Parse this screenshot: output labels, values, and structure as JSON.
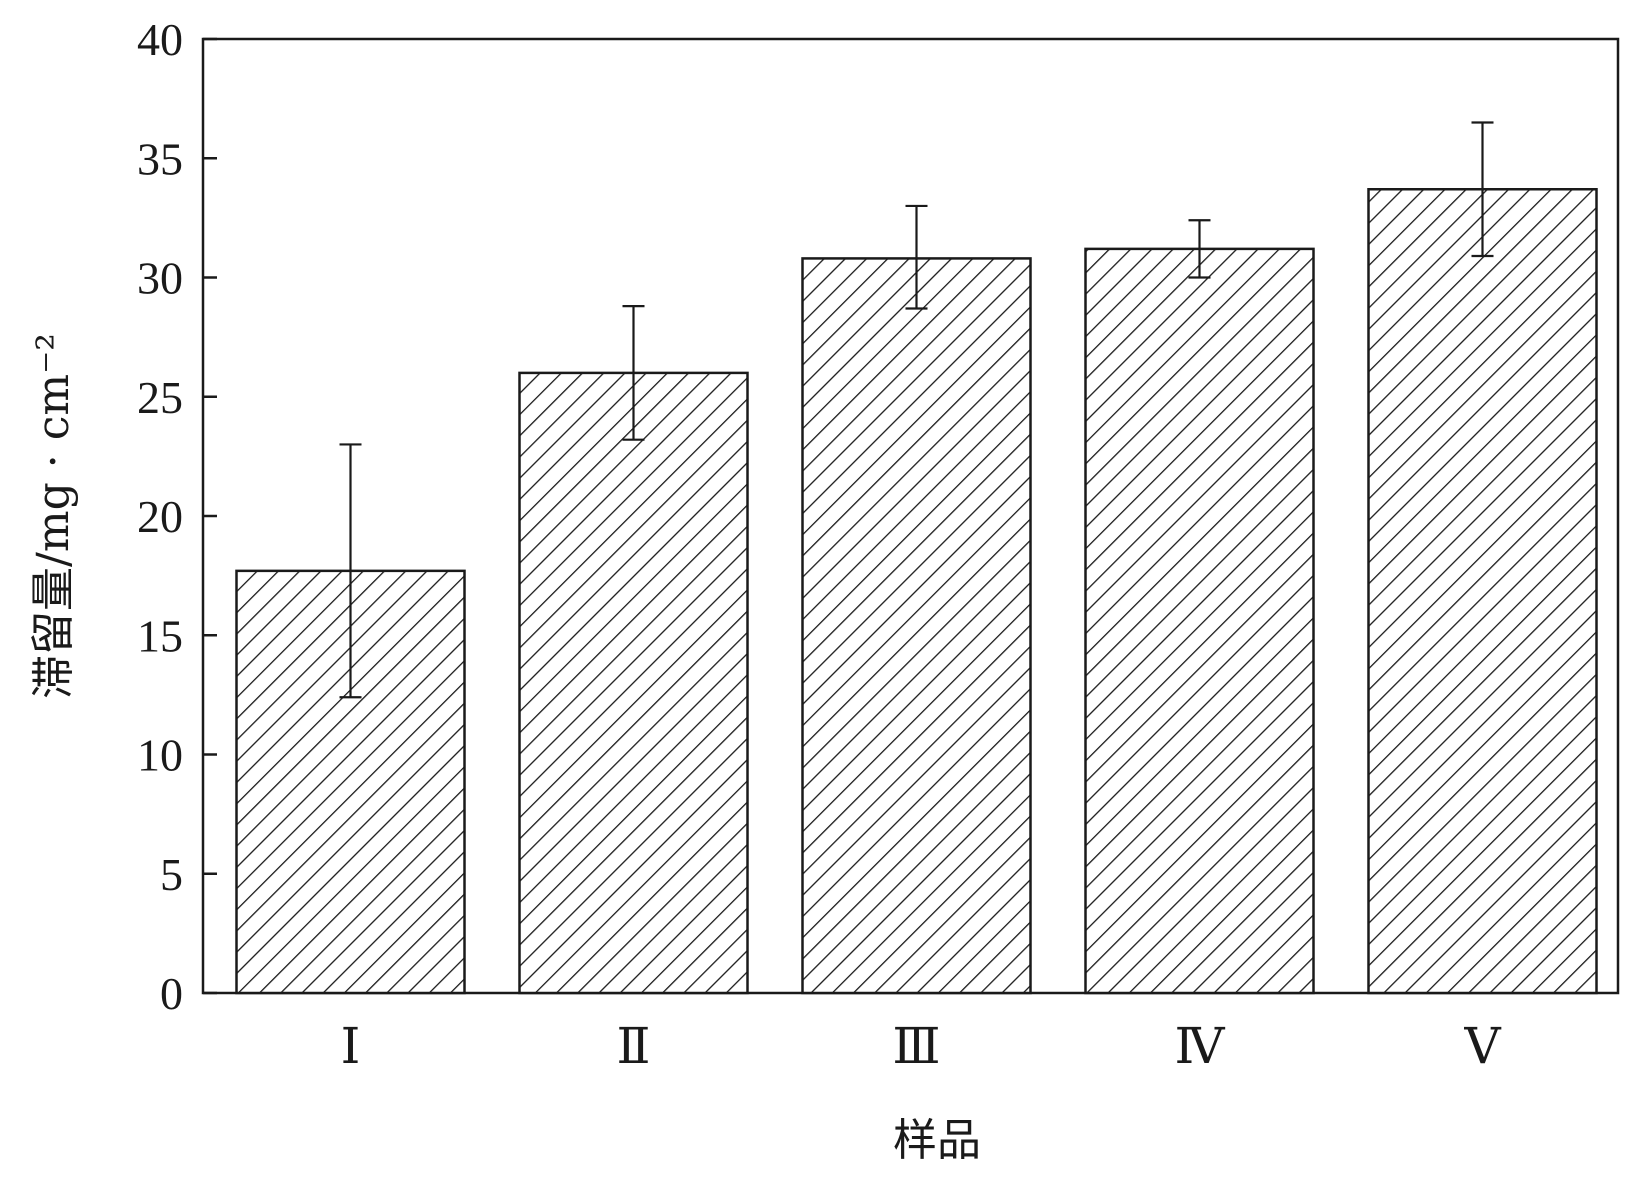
{
  "chart_data": {
    "type": "bar",
    "categories": [
      "Ⅰ",
      "Ⅱ",
      "Ⅲ",
      "Ⅳ",
      "Ⅴ"
    ],
    "values": [
      17.7,
      26.0,
      30.8,
      31.2,
      33.7
    ],
    "error_low": [
      12.4,
      23.2,
      28.7,
      30.0,
      30.9
    ],
    "error_high": [
      23.0,
      28.8,
      33.0,
      32.4,
      36.5
    ],
    "ylim": [
      0,
      40
    ],
    "yticks": [
      0,
      5,
      10,
      15,
      20,
      25,
      30,
      35,
      40
    ],
    "xlabel": "样品",
    "ylabel": "滞留量/mg · cm⁻²",
    "grid": false,
    "bar_fill": "diagonal-hatch",
    "colors": {
      "line": "#1a1a1a",
      "background": "#ffffff"
    }
  }
}
